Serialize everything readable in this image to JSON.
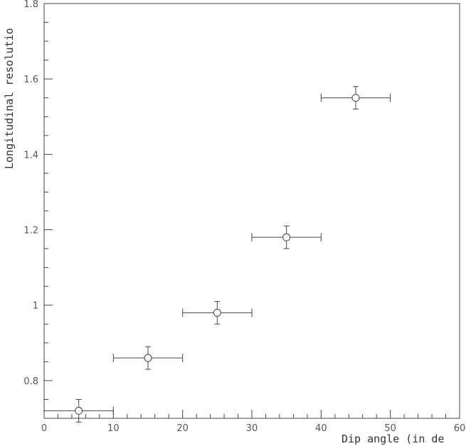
{
  "chart_data": {
    "type": "scatter",
    "title": "",
    "xlabel": "Dip angle (in de",
    "ylabel": "Longitudinal resolutio",
    "xlim": [
      0,
      60
    ],
    "ylim": [
      0.7,
      1.8
    ],
    "x_ticks": [
      0,
      10,
      20,
      30,
      40,
      50,
      60
    ],
    "x_tick_labels": [
      "0",
      "10",
      "20",
      "30",
      "40",
      "50",
      "60"
    ],
    "y_ticks": [
      0.8,
      1,
      1.2,
      1.4,
      1.6,
      1.8
    ],
    "y_tick_labels": [
      "0.8",
      "1",
      "1.2",
      "1.4",
      "1.6",
      "1.8"
    ],
    "grid": false,
    "marker": "open-circle",
    "points": [
      {
        "x": 5,
        "y": 0.72,
        "x_err": 5,
        "y_err": 0.03
      },
      {
        "x": 15,
        "y": 0.86,
        "x_err": 5,
        "y_err": 0.03
      },
      {
        "x": 25,
        "y": 0.98,
        "x_err": 5,
        "y_err": 0.03
      },
      {
        "x": 35,
        "y": 1.18,
        "x_err": 5,
        "y_err": 0.03
      },
      {
        "x": 45,
        "y": 1.55,
        "x_err": 5,
        "y_err": 0.03
      }
    ]
  }
}
